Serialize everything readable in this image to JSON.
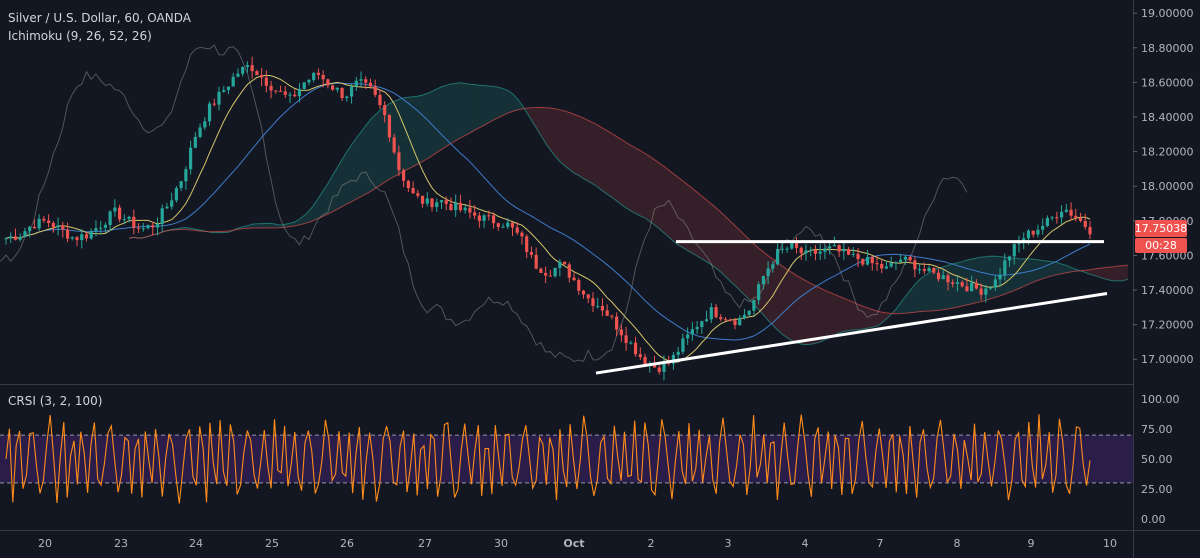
{
  "legend": {
    "symbol_title": "Silver / U.S. Dollar, 60, OANDA",
    "ichimoku_label": "Ichimoku (9, 26, 52, 26)",
    "crsi_label": "CRSI (3, 2, 100)"
  },
  "price_badge": {
    "price": "17.75038",
    "countdown": "00:28",
    "color": "#ef5350"
  },
  "colors": {
    "background": "#131722",
    "bull": "#26a69a",
    "bear": "#ef5350",
    "crsi_line": "#ff8c1a",
    "crsi_band": "#2a1d4a",
    "trendline": "#ffffff"
  },
  "chart_data": [
    {
      "type": "candlestick",
      "y_axis_ticks": [
        "19.00000",
        "18.80000",
        "18.60000",
        "18.40000",
        "18.20000",
        "18.00000",
        "17.80000",
        "17.60000",
        "17.40000",
        "17.20000",
        "17.00000"
      ],
      "x_axis_ticks": [
        "20",
        "23",
        "24",
        "25",
        "26",
        "27",
        "30",
        "Oct",
        "2",
        "3",
        "4",
        "7",
        "8",
        "9",
        "10"
      ],
      "ylim": [
        16.88,
        19.03
      ],
      "close_series": [
        17.7,
        17.72,
        17.78,
        17.8,
        17.75,
        17.7,
        17.72,
        17.78,
        17.85,
        17.8,
        17.75,
        17.78,
        17.9,
        18.05,
        18.3,
        18.45,
        18.55,
        18.65,
        18.7,
        18.62,
        18.55,
        18.5,
        18.6,
        18.65,
        18.58,
        18.52,
        18.6,
        18.55,
        18.4,
        18.1,
        17.95,
        17.9,
        17.92,
        17.88,
        17.85,
        17.82,
        17.8,
        17.78,
        17.7,
        17.55,
        17.5,
        17.55,
        17.45,
        17.35,
        17.3,
        17.2,
        17.1,
        17.0,
        16.95,
        16.98,
        17.1,
        17.2,
        17.28,
        17.25,
        17.22,
        17.3,
        17.5,
        17.62,
        17.65,
        17.6,
        17.62,
        17.64,
        17.6,
        17.58,
        17.55,
        17.52,
        17.58,
        17.55,
        17.5,
        17.48,
        17.45,
        17.42,
        17.4,
        17.45,
        17.6,
        17.7,
        17.75,
        17.8,
        17.88,
        17.82,
        17.75
      ],
      "price_axis_label": "17.75038",
      "trendlines": [
        {
          "name": "resistance",
          "from": [
            "2",
            17.68
          ],
          "to": [
            "10",
            17.68
          ]
        },
        {
          "name": "support",
          "from": [
            "Oct",
            16.92
          ],
          "to": [
            "10",
            17.38
          ]
        }
      ]
    },
    {
      "type": "line",
      "name": "CRSI",
      "y_axis_ticks": [
        "100.00",
        "75.00",
        "50.00",
        "25.00",
        "0.00"
      ],
      "ylim": [
        -6,
        106
      ],
      "bands": [
        30,
        70
      ]
    }
  ]
}
